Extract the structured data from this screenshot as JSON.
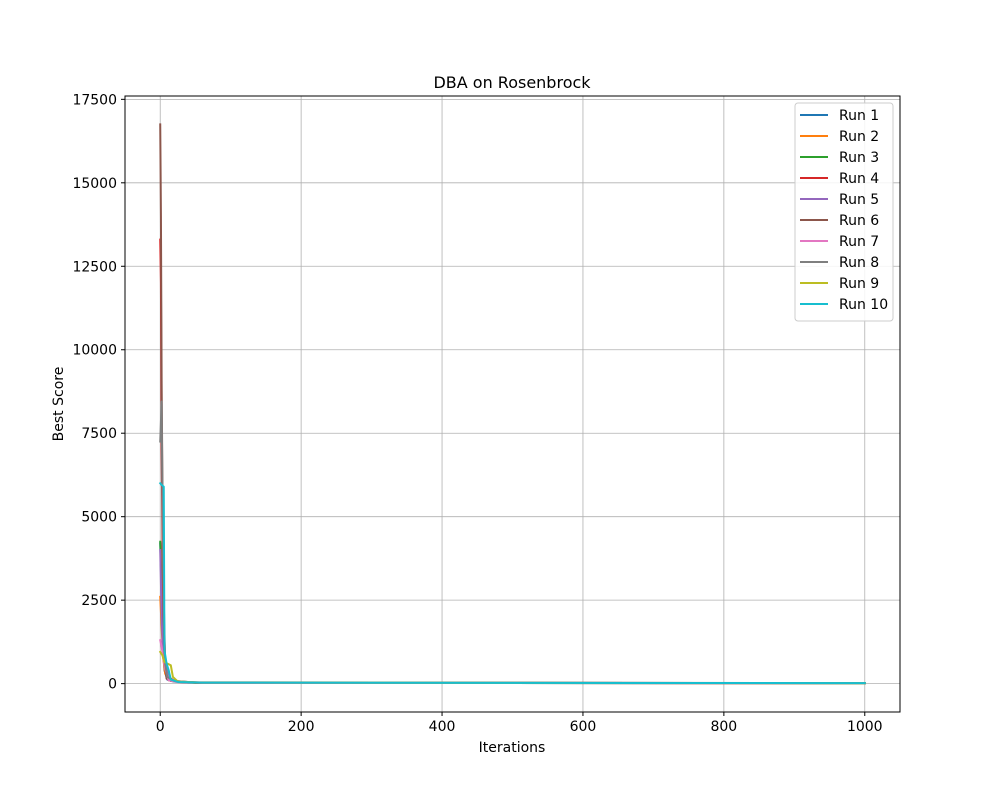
{
  "chart_data": {
    "type": "line",
    "title": "DBA on Rosenbrock",
    "xlabel": "Iterations",
    "ylabel": "Best Score",
    "xlim": [
      -50,
      1050
    ],
    "ylim": [
      -850,
      17600
    ],
    "xticks": [
      0,
      200,
      400,
      600,
      800,
      1000
    ],
    "yticks": [
      0,
      2500,
      5000,
      7500,
      10000,
      12500,
      15000,
      17500
    ],
    "grid": true,
    "legend_position": "top-right",
    "series": [
      {
        "name": "Run 1",
        "color": "#1f77b4",
        "points": [
          [
            0,
            4200
          ],
          [
            2,
            2600
          ],
          [
            4,
            1100
          ],
          [
            6,
            400
          ],
          [
            10,
            120
          ],
          [
            20,
            60
          ],
          [
            40,
            30
          ],
          [
            200,
            22
          ],
          [
            1000,
            12
          ]
        ]
      },
      {
        "name": "Run 2",
        "color": "#ff7f0e",
        "points": [
          [
            0,
            2600
          ],
          [
            2,
            1700
          ],
          [
            4,
            800
          ],
          [
            7,
            300
          ],
          [
            12,
            100
          ],
          [
            25,
            50
          ],
          [
            50,
            30
          ],
          [
            400,
            20
          ],
          [
            1000,
            10
          ]
        ]
      },
      {
        "name": "Run 3",
        "color": "#2ca02c",
        "points": [
          [
            0,
            4250
          ],
          [
            2,
            2900
          ],
          [
            5,
            900
          ],
          [
            8,
            500
          ],
          [
            12,
            200
          ],
          [
            20,
            70
          ],
          [
            50,
            28
          ],
          [
            500,
            18
          ],
          [
            1000,
            11
          ]
        ]
      },
      {
        "name": "Run 4",
        "color": "#d62728",
        "points": [
          [
            0,
            13300
          ],
          [
            1,
            12000
          ],
          [
            2,
            7000
          ],
          [
            4,
            2500
          ],
          [
            7,
            700
          ],
          [
            12,
            200
          ],
          [
            20,
            80
          ],
          [
            50,
            30
          ],
          [
            1000,
            12
          ]
        ]
      },
      {
        "name": "Run 5",
        "color": "#9467bd",
        "points": [
          [
            0,
            4000
          ],
          [
            2,
            2000
          ],
          [
            4,
            900
          ],
          [
            7,
            600
          ],
          [
            9,
            500
          ],
          [
            12,
            150
          ],
          [
            25,
            60
          ],
          [
            60,
            30
          ],
          [
            1000,
            13
          ]
        ]
      },
      {
        "name": "Run 6",
        "color": "#8c564b",
        "points": [
          [
            0,
            16750
          ],
          [
            1,
            14000
          ],
          [
            2,
            9000
          ],
          [
            4,
            3500
          ],
          [
            6,
            700
          ],
          [
            9,
            150
          ],
          [
            15,
            80
          ],
          [
            40,
            40
          ],
          [
            1000,
            14
          ]
        ]
      },
      {
        "name": "Run 7",
        "color": "#e377c2",
        "points": [
          [
            0,
            1300
          ],
          [
            2,
            1100
          ],
          [
            4,
            800
          ],
          [
            7,
            450
          ],
          [
            12,
            100
          ],
          [
            25,
            45
          ],
          [
            60,
            25
          ],
          [
            1000,
            10
          ]
        ]
      },
      {
        "name": "Run 8",
        "color": "#7f7f7f",
        "points": [
          [
            0,
            7250
          ],
          [
            2,
            8450
          ],
          [
            3,
            6000
          ],
          [
            5,
            2500
          ],
          [
            7,
            600
          ],
          [
            10,
            200
          ],
          [
            20,
            80
          ],
          [
            50,
            35
          ],
          [
            1000,
            13
          ]
        ]
      },
      {
        "name": "Run 9",
        "color": "#bcbd22",
        "points": [
          [
            0,
            950
          ],
          [
            3,
            850
          ],
          [
            6,
            650
          ],
          [
            10,
            600
          ],
          [
            15,
            550
          ],
          [
            18,
            200
          ],
          [
            25,
            60
          ],
          [
            60,
            30
          ],
          [
            1000,
            12
          ]
        ]
      },
      {
        "name": "Run 10",
        "color": "#17becf",
        "points": [
          [
            0,
            6000
          ],
          [
            2,
            5950
          ],
          [
            5,
            5900
          ],
          [
            6,
            1000
          ],
          [
            9,
            600
          ],
          [
            12,
            400
          ],
          [
            15,
            120
          ],
          [
            25,
            50
          ],
          [
            60,
            30
          ],
          [
            1000,
            15
          ]
        ]
      }
    ]
  }
}
